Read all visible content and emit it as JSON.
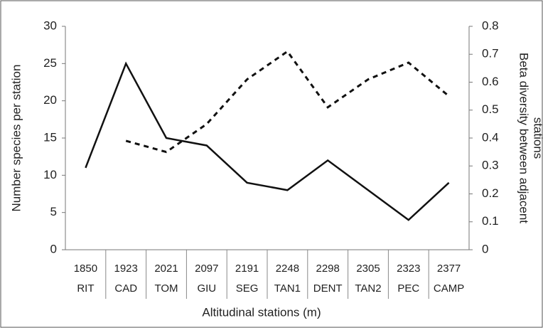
{
  "chart_data": {
    "type": "line",
    "categories": [
      "RIT",
      "CAD",
      "TOM",
      "GIU",
      "SEG",
      "TAN1",
      "DENT",
      "TAN2",
      "PEC",
      "CAMP"
    ],
    "altitudes": [
      "1850",
      "1923",
      "2021",
      "2097",
      "2191",
      "2248",
      "2298",
      "2305",
      "2323",
      "2377"
    ],
    "xlabel": "Altitudinal stations (m)",
    "ylabel": "Number species per station",
    "y2label": [
      "Beta diversity between adjacent",
      "stations"
    ],
    "ylim": [
      0,
      30
    ],
    "yticks": [
      0,
      5,
      10,
      15,
      20,
      25,
      30
    ],
    "y2lim": [
      0,
      0.8
    ],
    "y2ticks": [
      0,
      0.1,
      0.2,
      0.3,
      0.4,
      0.5,
      0.6,
      0.7,
      0.8
    ],
    "series": [
      {
        "color": "#111111",
        "dash": "solid",
        "values": [
          11,
          25,
          15,
          14,
          9,
          8,
          12,
          8,
          4,
          9
        ]
      },
      {
        "color": "#111111",
        "dash": "dashed",
        "axis": "y2",
        "values": [
          null,
          0.39,
          0.35,
          0.45,
          0.61,
          0.71,
          0.51,
          0.61,
          0.67,
          0.55
        ]
      }
    ]
  }
}
